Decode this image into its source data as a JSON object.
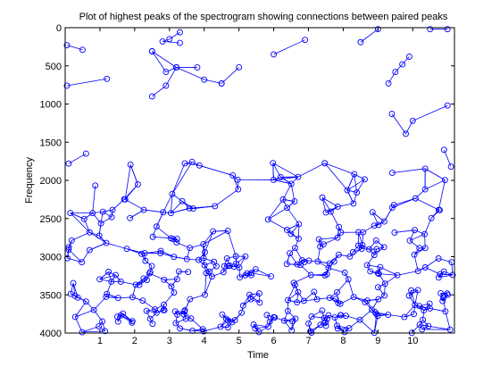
{
  "chart_data": {
    "type": "scatter",
    "title": "Plot of highest peaks of the spectrogram showing connections between paired peaks",
    "xlabel": "Time",
    "ylabel": "Frequency",
    "xlim": [
      0,
      11.2
    ],
    "ylim": [
      0,
      4000
    ],
    "y_reversed": true,
    "x_ticks": [
      1,
      2,
      3,
      4,
      5,
      6,
      7,
      8,
      9,
      10
    ],
    "y_ticks": [
      0,
      500,
      1000,
      1500,
      2000,
      2500,
      3000,
      3500,
      4000
    ],
    "colors": {
      "series": "#0000ff",
      "axes": "#000000",
      "background": "#ffffff"
    },
    "marker": "circle",
    "grid": false,
    "connected_pairs": [
      [
        [
          0.05,
          230
        ],
        [
          0.5,
          290
        ]
      ],
      [
        [
          0.05,
          760
        ],
        [
          1.2,
          670
        ]
      ],
      [
        [
          3.3,
          60
        ],
        [
          3.0,
          150
        ],
        [
          2.8,
          180
        ],
        [
          3.3,
          200
        ]
      ],
      [
        [
          2.5,
          310
        ],
        [
          2.9,
          580
        ],
        [
          3.2,
          520
        ],
        [
          3.8,
          520
        ]
      ],
      [
        [
          2.5,
          310
        ],
        [
          3.2,
          520
        ],
        [
          4.0,
          680
        ],
        [
          4.5,
          730
        ]
      ],
      [
        [
          4.5,
          730
        ],
        [
          5.0,
          520
        ]
      ],
      [
        [
          2.5,
          900
        ],
        [
          2.9,
          760
        ],
        [
          3.2,
          520
        ]
      ],
      [
        [
          6.0,
          350
        ],
        [
          6.9,
          160
        ]
      ],
      [
        [
          8.5,
          190
        ],
        [
          9.0,
          20
        ]
      ],
      [
        [
          10.5,
          20
        ],
        [
          11.0,
          20
        ]
      ],
      [
        [
          9.3,
          730
        ],
        [
          9.5,
          580
        ],
        [
          9.7,
          480
        ],
        [
          9.9,
          380
        ]
      ],
      [
        [
          9.4,
          1130
        ],
        [
          9.8,
          1390
        ],
        [
          10.0,
          1220
        ],
        [
          11.0,
          1020
        ]
      ],
      [
        [
          0.1,
          1780
        ],
        [
          0.6,
          1650
        ]
      ],
      [
        [
          10.9,
          1600
        ],
        [
          11.1,
          1820
        ]
      ]
    ],
    "peak_field": {
      "x_range": [
        0,
        11.2
      ],
      "y_range": [
        1640,
        4000
      ],
      "note": "dense cluster of peaks with many connecting lines"
    }
  }
}
